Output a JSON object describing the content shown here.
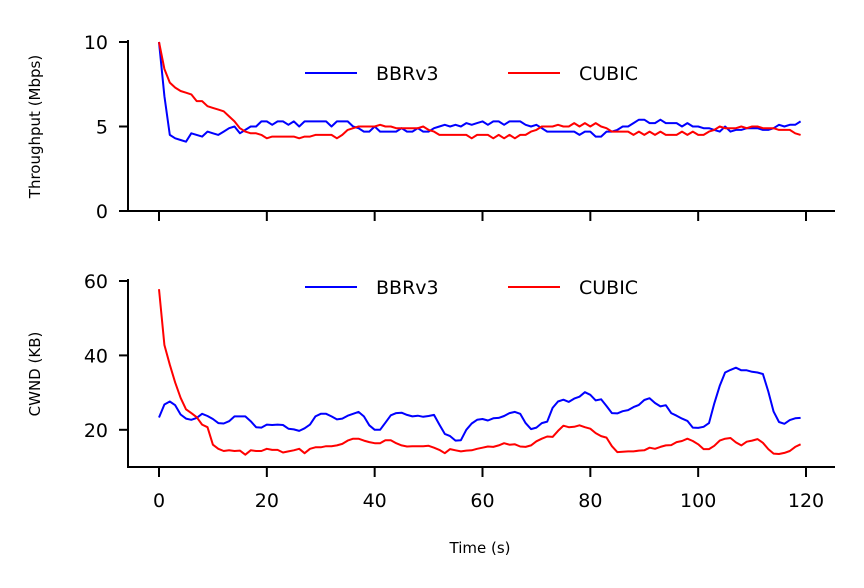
{
  "chart_data": [
    {
      "type": "line",
      "ylabel": "Throughput (Mbps)",
      "xlabel": "",
      "xlim": [
        -6,
        125
      ],
      "ylim": [
        0,
        10
      ],
      "xticks": [
        0,
        20,
        40,
        60,
        80,
        100,
        120
      ],
      "yticks": [
        0,
        5,
        10
      ],
      "xtick_labels_visible": false,
      "legend": "top-center",
      "series": [
        {
          "name": "BBRv3",
          "color": "#0000ff",
          "x": [
            0,
            1,
            2,
            3,
            4,
            5,
            6,
            7,
            8,
            9,
            10,
            11,
            12,
            13,
            14,
            15,
            16,
            17,
            18,
            19,
            20,
            21,
            22,
            23,
            24,
            25,
            26,
            27,
            28,
            29,
            30,
            31,
            32,
            33,
            34,
            35,
            36,
            37,
            38,
            39,
            40,
            41,
            42,
            43,
            44,
            45,
            46,
            47,
            48,
            49,
            50,
            51,
            52,
            53,
            54,
            55,
            56,
            57,
            58,
            59,
            60,
            61,
            62,
            63,
            64,
            65,
            66,
            67,
            68,
            69,
            70,
            71,
            72,
            73,
            74,
            75,
            76,
            77,
            78,
            79,
            80,
            81,
            82,
            83,
            84,
            85,
            86,
            87,
            88,
            89,
            90,
            91,
            92,
            93,
            94,
            95,
            96,
            97,
            98,
            99,
            100,
            101,
            102,
            103,
            104,
            105,
            106,
            107,
            108,
            109,
            110,
            111,
            112,
            113,
            114,
            115,
            116,
            117,
            118,
            119
          ],
          "y": [
            10,
            6.8,
            4.5,
            4.3,
            4.2,
            4.1,
            4.6,
            4.5,
            4.4,
            4.7,
            4.6,
            4.5,
            4.7,
            4.9,
            5.0,
            4.6,
            4.8,
            5.0,
            5.0,
            5.3,
            5.3,
            5.1,
            5.3,
            5.3,
            5.1,
            5.3,
            5.0,
            5.3,
            5.3,
            5.3,
            5.3,
            5.3,
            5.0,
            5.3,
            5.3,
            5.3,
            5.0,
            4.9,
            4.7,
            4.7,
            5.0,
            4.7,
            4.7,
            4.7,
            4.7,
            4.9,
            4.7,
            4.7,
            4.9,
            4.7,
            4.7,
            4.9,
            5.0,
            5.1,
            5.0,
            5.1,
            5.0,
            5.2,
            5.1,
            5.2,
            5.3,
            5.1,
            5.3,
            5.3,
            5.1,
            5.3,
            5.3,
            5.3,
            5.1,
            5.0,
            5.1,
            4.9,
            4.7,
            4.7,
            4.7,
            4.7,
            4.7,
            4.7,
            4.5,
            4.7,
            4.7,
            4.4,
            4.4,
            4.7,
            4.7,
            4.8,
            5.0,
            5.0,
            5.2,
            5.4,
            5.4,
            5.2,
            5.2,
            5.4,
            5.2,
            5.2,
            5.2,
            5.0,
            5.2,
            5.0,
            5.0,
            4.9,
            4.9,
            4.8,
            4.7,
            5.0,
            4.7,
            4.8,
            4.8,
            4.9,
            4.9,
            4.9,
            4.8,
            4.8,
            4.9,
            5.1,
            5.0,
            5.1,
            5.1,
            5.3
          ]
        },
        {
          "name": "CUBIC",
          "color": "#ff0000",
          "x": [
            0,
            1,
            2,
            3,
            4,
            5,
            6,
            7,
            8,
            9,
            10,
            11,
            12,
            13,
            14,
            15,
            16,
            17,
            18,
            19,
            20,
            21,
            22,
            23,
            24,
            25,
            26,
            27,
            28,
            29,
            30,
            31,
            32,
            33,
            34,
            35,
            36,
            37,
            38,
            39,
            40,
            41,
            42,
            43,
            44,
            45,
            46,
            47,
            48,
            49,
            50,
            51,
            52,
            53,
            54,
            55,
            56,
            57,
            58,
            59,
            60,
            61,
            62,
            63,
            64,
            65,
            66,
            67,
            68,
            69,
            70,
            71,
            72,
            73,
            74,
            75,
            76,
            77,
            78,
            79,
            80,
            81,
            82,
            83,
            84,
            85,
            86,
            87,
            88,
            89,
            90,
            91,
            92,
            93,
            94,
            95,
            96,
            97,
            98,
            99,
            100,
            101,
            102,
            103,
            104,
            105,
            106,
            107,
            108,
            109,
            110,
            111,
            112,
            113,
            114,
            115,
            116,
            117,
            118,
            119
          ],
          "y": [
            10,
            8.4,
            7.6,
            7.3,
            7.1,
            7.0,
            6.9,
            6.5,
            6.5,
            6.2,
            6.1,
            6.0,
            5.9,
            5.6,
            5.3,
            4.9,
            4.7,
            4.6,
            4.6,
            4.5,
            4.3,
            4.4,
            4.4,
            4.4,
            4.4,
            4.4,
            4.3,
            4.4,
            4.4,
            4.5,
            4.5,
            4.5,
            4.5,
            4.3,
            4.5,
            4.8,
            4.9,
            5.0,
            5.0,
            5.0,
            5.0,
            5.1,
            5.0,
            5.0,
            4.9,
            4.9,
            4.9,
            4.9,
            4.9,
            5.0,
            4.8,
            4.7,
            4.5,
            4.5,
            4.5,
            4.5,
            4.5,
            4.5,
            4.3,
            4.5,
            4.5,
            4.5,
            4.3,
            4.5,
            4.3,
            4.5,
            4.3,
            4.5,
            4.5,
            4.7,
            4.8,
            5.0,
            5.0,
            5.0,
            5.1,
            5.0,
            5.0,
            5.2,
            5.0,
            5.2,
            5.0,
            5.2,
            5.0,
            4.9,
            4.7,
            4.7,
            4.7,
            4.7,
            4.5,
            4.7,
            4.5,
            4.7,
            4.5,
            4.7,
            4.5,
            4.5,
            4.5,
            4.7,
            4.5,
            4.7,
            4.5,
            4.5,
            4.7,
            4.8,
            5.0,
            4.9,
            4.9,
            4.9,
            5.0,
            4.9,
            5.0,
            5.0,
            4.9,
            4.9,
            4.9,
            4.8,
            4.8,
            4.8,
            4.6,
            4.5
          ]
        }
      ]
    },
    {
      "type": "line",
      "ylabel": "CWND (KB)",
      "xlabel": "Time (s)",
      "xlim": [
        -6,
        125
      ],
      "ylim": [
        10,
        60
      ],
      "xticks": [
        0,
        20,
        40,
        60,
        80,
        100,
        120
      ],
      "yticks": [
        20,
        40,
        60
      ],
      "xtick_labels_visible": true,
      "legend": "top-center",
      "series": [
        {
          "name": "BBRv3",
          "color": "#0000ff",
          "x": [
            0,
            1,
            2,
            3,
            4,
            5,
            6,
            7,
            8,
            9,
            10,
            11,
            12,
            13,
            14,
            15,
            16,
            17,
            18,
            19,
            20,
            21,
            22,
            23,
            24,
            25,
            26,
            27,
            28,
            29,
            30,
            31,
            32,
            33,
            34,
            35,
            36,
            37,
            38,
            39,
            40,
            41,
            42,
            43,
            44,
            45,
            46,
            47,
            48,
            49,
            50,
            51,
            52,
            53,
            54,
            55,
            56,
            57,
            58,
            59,
            60,
            61,
            62,
            63,
            64,
            65,
            66,
            67,
            68,
            69,
            70,
            71,
            72,
            73,
            74,
            75,
            76,
            77,
            78,
            79,
            80,
            81,
            82,
            83,
            84,
            85,
            86,
            87,
            88,
            89,
            90,
            91,
            92,
            93,
            94,
            95,
            96,
            97,
            98,
            99,
            100,
            101,
            102,
            103,
            104,
            105,
            106,
            107,
            108,
            109,
            110,
            111,
            112,
            113,
            114,
            115,
            116,
            117,
            118,
            119
          ],
          "y": [
            23.3,
            26.8,
            27.6,
            26.6,
            24.1,
            23,
            22.7,
            23.2,
            24.3,
            23.7,
            22.9,
            21.8,
            21.7,
            22.3,
            23.6,
            23.6,
            23.6,
            22.3,
            20.7,
            20.6,
            21.4,
            21.3,
            21.4,
            21.3,
            20.3,
            20.1,
            19.7,
            20.4,
            21.4,
            23.6,
            24.3,
            24.3,
            23.6,
            22.8,
            23,
            23.8,
            24.3,
            24.8,
            23.6,
            21.2,
            20,
            20,
            21.9,
            23.9,
            24.5,
            24.6,
            24,
            23.6,
            23.8,
            23.5,
            23.7,
            24,
            21.4,
            18.9,
            18.3,
            17.1,
            17.2,
            20,
            21.7,
            22.7,
            22.9,
            22.5,
            23.1,
            23.2,
            23.7,
            24.5,
            24.8,
            24.3,
            21.8,
            20.2,
            20.6,
            21.8,
            22.2,
            25.9,
            27.6,
            28.1,
            27.5,
            28.4,
            28.9,
            30.1,
            29.4,
            27.9,
            28.2,
            26.4,
            24.5,
            24.4,
            25,
            25.3,
            26.1,
            26.7,
            28,
            28.5,
            27.2,
            26.3,
            26.6,
            24.5,
            23.8,
            23,
            22.4,
            20.6,
            20.5,
            20.8,
            21.8,
            27.1,
            31.8,
            35.4,
            36.1,
            36.7,
            36,
            36,
            35.6,
            35.4,
            35,
            30.3,
            24.9,
            22.1,
            21.6,
            22.6,
            23.1,
            23.2
          ]
        },
        {
          "name": "CUBIC",
          "color": "#ff0000",
          "x": [
            0,
            1,
            2,
            3,
            4,
            5,
            6,
            7,
            8,
            9,
            10,
            11,
            12,
            13,
            14,
            15,
            16,
            17,
            18,
            19,
            20,
            21,
            22,
            23,
            24,
            25,
            26,
            27,
            28,
            29,
            30,
            31,
            32,
            33,
            34,
            35,
            36,
            37,
            38,
            39,
            40,
            41,
            42,
            43,
            44,
            45,
            46,
            47,
            48,
            49,
            50,
            51,
            52,
            53,
            54,
            55,
            56,
            57,
            58,
            59,
            60,
            61,
            62,
            63,
            64,
            65,
            66,
            67,
            68,
            69,
            70,
            71,
            72,
            73,
            74,
            75,
            76,
            77,
            78,
            79,
            80,
            81,
            82,
            83,
            84,
            85,
            86,
            87,
            88,
            89,
            90,
            91,
            92,
            93,
            94,
            95,
            96,
            97,
            98,
            99,
            100,
            101,
            102,
            103,
            104,
            105,
            106,
            107,
            108,
            109,
            110,
            111,
            112,
            113,
            114,
            115,
            116,
            117,
            118,
            119
          ],
          "y": [
            57.8,
            42.8,
            37.5,
            32.7,
            28.6,
            25.5,
            24.5,
            23.4,
            21.4,
            20.7,
            16,
            14.9,
            14.3,
            14.5,
            14.3,
            14.4,
            13.3,
            14.5,
            14.3,
            14.3,
            14.9,
            14.6,
            14.6,
            13.9,
            14.2,
            14.5,
            14.9,
            13.7,
            14.9,
            15.3,
            15.3,
            15.6,
            15.6,
            15.8,
            16.2,
            17.1,
            17.6,
            17.6,
            17.1,
            16.7,
            16.4,
            16.4,
            17.2,
            17.2,
            16.4,
            15.8,
            15.5,
            15.6,
            15.6,
            15.6,
            15.7,
            15.2,
            14.6,
            13.7,
            14.8,
            14.5,
            14.2,
            14.4,
            14.5,
            14.9,
            15.2,
            15.5,
            15.4,
            15.8,
            16.4,
            16,
            16.1,
            15.5,
            15.4,
            15.8,
            16.9,
            17.6,
            18.2,
            18.1,
            19.7,
            21.1,
            20.7,
            20.8,
            21.2,
            20.7,
            20.3,
            19.1,
            18.3,
            17.9,
            15.6,
            14,
            14.1,
            14.2,
            14.2,
            14.4,
            14.5,
            15.2,
            14.9,
            15.4,
            15.8,
            15.9,
            16.7,
            17,
            17.6,
            17,
            16.1,
            14.8,
            14.8,
            15.7,
            17.1,
            17.6,
            17.8,
            16.6,
            15.8,
            16.8,
            17.1,
            17.5,
            16.5,
            14.8,
            13.6,
            13.5,
            13.8,
            14.3,
            15.4,
            16.1
          ]
        }
      ]
    }
  ]
}
